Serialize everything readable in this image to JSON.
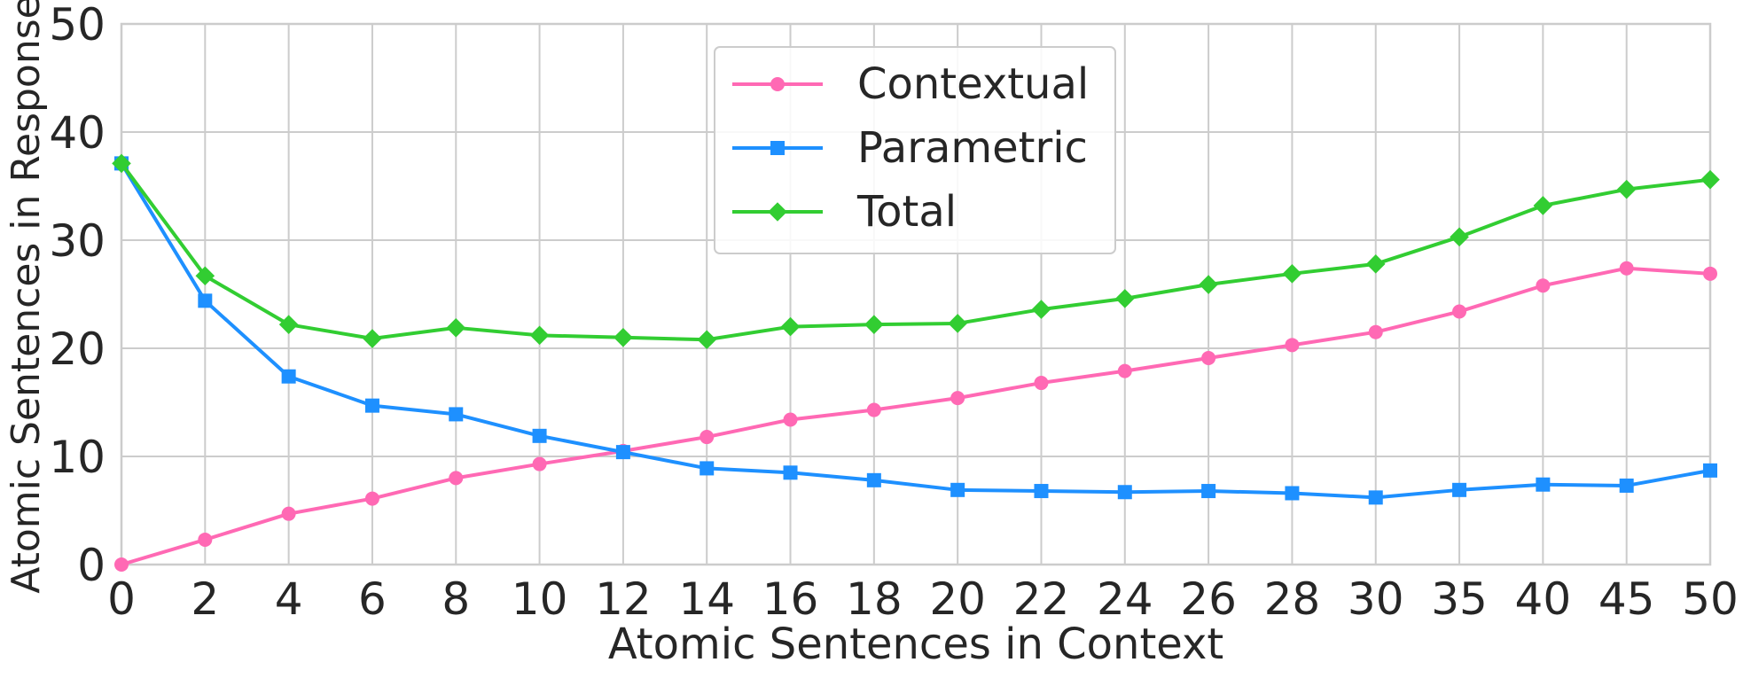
{
  "chart_data": {
    "type": "line",
    "xlabel": "Atomic Sentences in Context",
    "ylabel": "Atomic Sentences in Response",
    "categories": [
      "0",
      "2",
      "4",
      "6",
      "8",
      "10",
      "12",
      "14",
      "16",
      "18",
      "20",
      "22",
      "24",
      "26",
      "28",
      "30",
      "35",
      "40",
      "45",
      "50"
    ],
    "yticks": [
      "0",
      "10",
      "20",
      "30",
      "40",
      "50"
    ],
    "ylim": [
      0,
      50
    ],
    "grid": true,
    "legend_position": "top-center",
    "series": [
      {
        "name": "Contextual",
        "color": "#ff69b4",
        "marker": "circle",
        "values": [
          0.0,
          2.3,
          4.7,
          6.1,
          8.0,
          9.3,
          10.5,
          11.8,
          13.4,
          14.3,
          15.4,
          16.8,
          17.9,
          19.1,
          20.3,
          21.5,
          23.4,
          25.8,
          27.4,
          26.9
        ]
      },
      {
        "name": "Parametric",
        "color": "#1e90ff",
        "marker": "square",
        "values": [
          37.1,
          24.4,
          17.4,
          14.7,
          13.9,
          11.9,
          10.4,
          8.9,
          8.5,
          7.8,
          6.9,
          6.8,
          6.7,
          6.8,
          6.6,
          6.2,
          6.9,
          7.4,
          7.3,
          8.7
        ]
      },
      {
        "name": "Total",
        "color": "#32cd32",
        "marker": "diamond",
        "values": [
          37.1,
          26.7,
          22.2,
          20.9,
          21.9,
          21.2,
          21.0,
          20.8,
          22.0,
          22.2,
          22.3,
          23.6,
          24.6,
          25.9,
          26.9,
          27.8,
          30.3,
          33.2,
          34.7,
          35.6
        ]
      }
    ]
  }
}
